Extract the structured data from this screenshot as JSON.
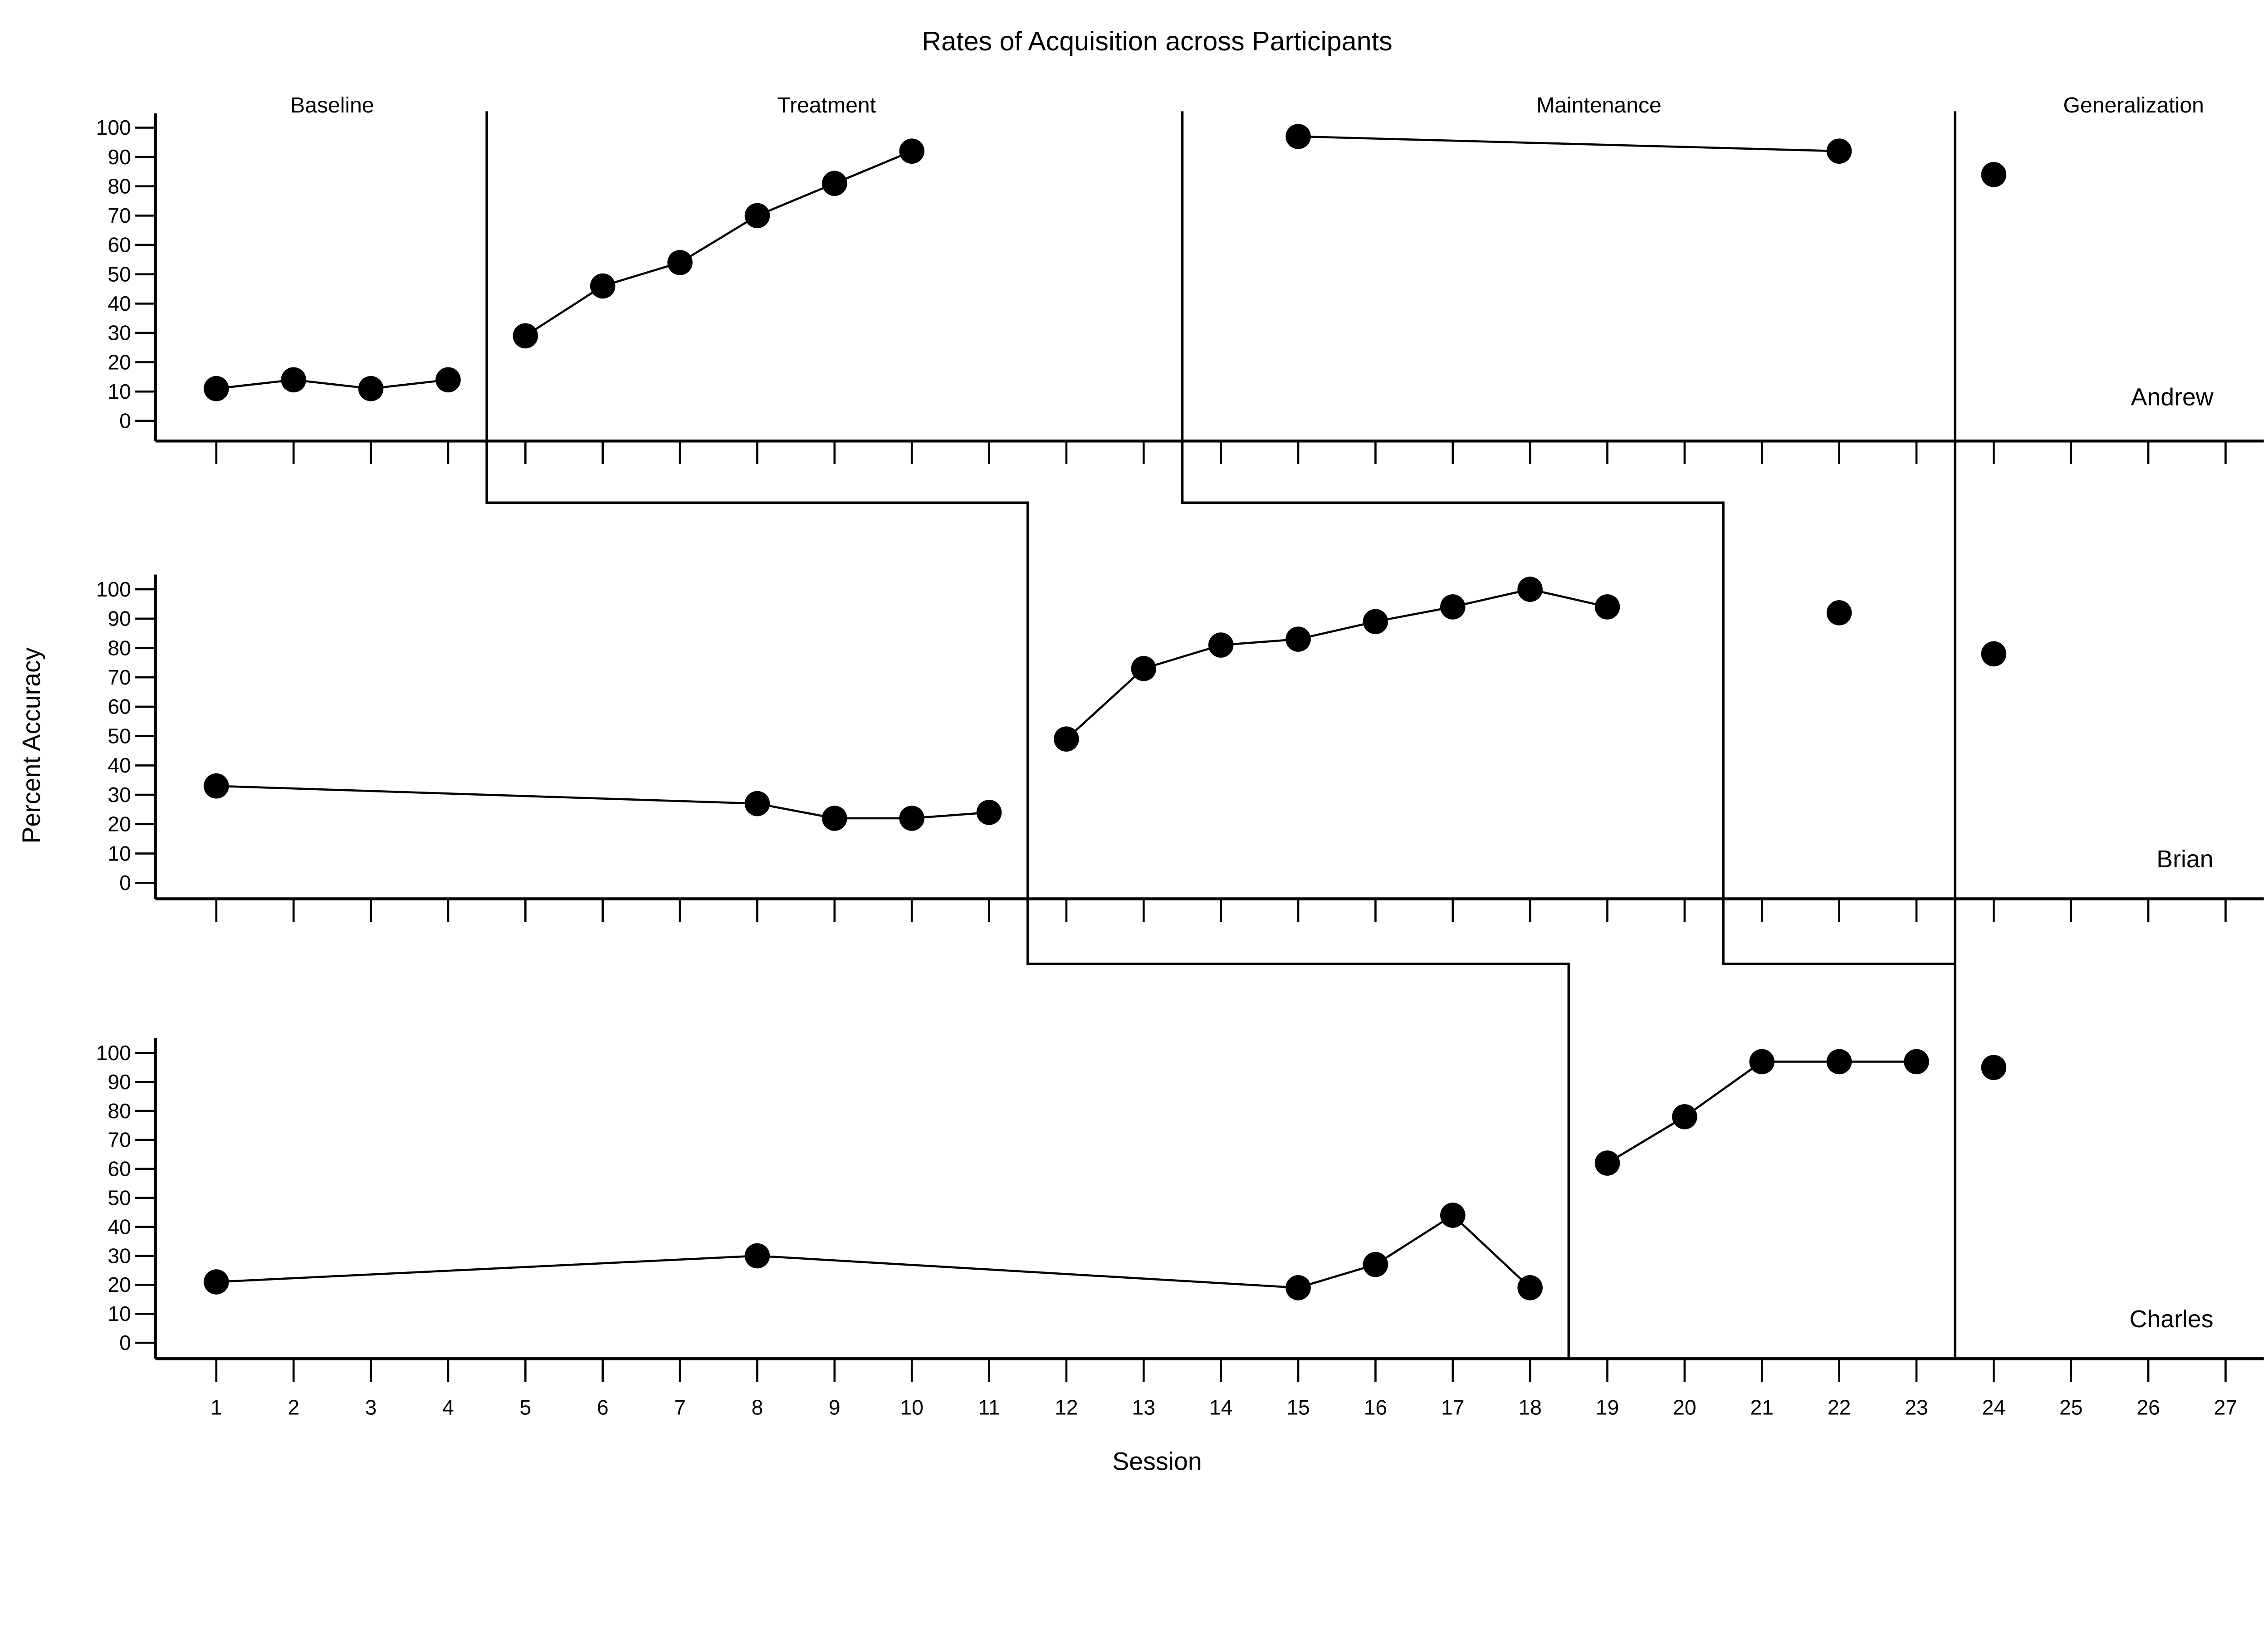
{
  "chart_data": {
    "type": "line",
    "title": "Rates of Acquisition across Participants",
    "xlabel": "Session",
    "ylabel": "Percent Accuracy",
    "phase_labels": [
      "Baseline",
      "Treatment",
      "Maintenance",
      "Generalization"
    ],
    "x_ticks": [
      1,
      2,
      3,
      4,
      5,
      6,
      7,
      8,
      9,
      10,
      11,
      12,
      13,
      14,
      15,
      16,
      17,
      18,
      19,
      20,
      21,
      22,
      23,
      24,
      25,
      26,
      27
    ],
    "y_ticks": [
      0,
      10,
      20,
      30,
      40,
      50,
      60,
      70,
      80,
      90,
      100
    ],
    "xlim": [
      1,
      27
    ],
    "ylim": [
      0,
      100
    ],
    "grid": "off",
    "legend": "none",
    "marker": "filled-circle",
    "colors": {
      "foreground": "#000000",
      "background": "#ffffff"
    },
    "panels": [
      {
        "participant": "Andrew",
        "series": [
          {
            "phase": "Baseline",
            "connect": true,
            "points": [
              [
                1,
                11
              ],
              [
                2,
                14
              ],
              [
                3,
                11
              ],
              [
                4,
                14
              ]
            ]
          },
          {
            "phase": "Treatment",
            "connect": true,
            "points": [
              [
                5,
                29
              ],
              [
                6,
                46
              ],
              [
                7,
                54
              ],
              [
                8,
                70
              ],
              [
                9,
                81
              ],
              [
                10,
                92
              ]
            ]
          },
          {
            "phase": "Maintenance",
            "connect": true,
            "points": [
              [
                15,
                97
              ],
              [
                22,
                92
              ]
            ]
          },
          {
            "phase": "Generalization",
            "connect": false,
            "points": [
              [
                24,
                84
              ]
            ]
          }
        ]
      },
      {
        "participant": "Brian",
        "series": [
          {
            "phase": "Baseline",
            "connect": true,
            "points": [
              [
                1,
                33
              ],
              [
                8,
                27
              ],
              [
                9,
                22
              ],
              [
                10,
                22
              ],
              [
                11,
                24
              ]
            ]
          },
          {
            "phase": "Treatment",
            "connect": true,
            "points": [
              [
                12,
                49
              ],
              [
                13,
                73
              ],
              [
                14,
                81
              ],
              [
                15,
                83
              ],
              [
                16,
                89
              ],
              [
                17,
                94
              ],
              [
                18,
                100
              ],
              [
                19,
                94
              ]
            ]
          },
          {
            "phase": "Maintenance",
            "connect": false,
            "points": [
              [
                22,
                92
              ]
            ]
          },
          {
            "phase": "Generalization",
            "connect": false,
            "points": [
              [
                24,
                78
              ]
            ]
          }
        ]
      },
      {
        "participant": "Charles",
        "series": [
          {
            "phase": "Baseline",
            "connect": true,
            "points": [
              [
                1,
                21
              ],
              [
                8,
                30
              ],
              [
                15,
                19
              ],
              [
                16,
                27
              ],
              [
                17,
                44
              ],
              [
                18,
                19
              ]
            ]
          },
          {
            "phase": "Treatment",
            "connect": true,
            "points": [
              [
                19,
                62
              ],
              [
                20,
                78
              ],
              [
                21,
                97
              ],
              [
                22,
                97
              ],
              [
                23,
                97
              ]
            ]
          },
          {
            "phase": "Generalization",
            "connect": false,
            "points": [
              [
                24,
                95
              ]
            ]
          }
        ]
      }
    ],
    "phase_boundaries": [
      {
        "name": "baseline-treatment-boundary",
        "path": [
          [
            4.5,
            0
          ],
          [
            4.5,
            1
          ],
          [
            11.5,
            1
          ],
          [
            11.5,
            2
          ],
          [
            18.5,
            2
          ],
          [
            18.5,
            3
          ]
        ]
      },
      {
        "name": "treatment-maintenance-boundary",
        "path": [
          [
            13.5,
            0
          ],
          [
            13.5,
            1
          ],
          [
            20.5,
            1
          ],
          [
            20.5,
            2
          ],
          [
            23.5,
            2
          ]
        ]
      },
      {
        "name": "generalization-boundary",
        "path": [
          [
            23.5,
            0
          ],
          [
            23.5,
            3
          ]
        ]
      }
    ]
  }
}
